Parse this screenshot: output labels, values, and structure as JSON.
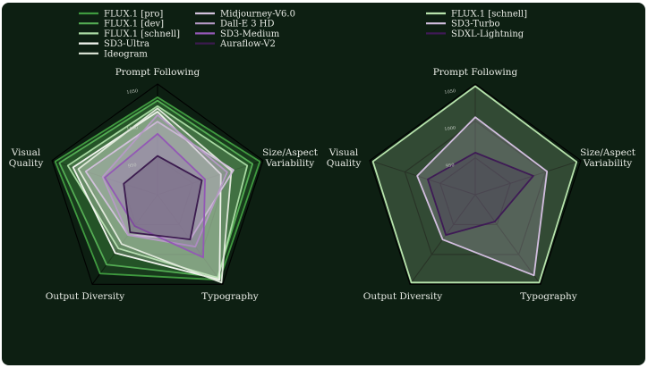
{
  "colors": {
    "background": "#0d1f12",
    "grid": "#000000",
    "label": "#e9ece6"
  },
  "chart_data": [
    {
      "type": "radar",
      "axes": [
        "Prompt Following",
        "Size/Aspect Variability",
        "Typography",
        "Output Diversity",
        "Visual Quality"
      ],
      "axis_label_lines": [
        [
          "Prompt Following"
        ],
        [
          "Size/Aspect",
          "Variability"
        ],
        [
          "Typography"
        ],
        [
          "Output Diversity"
        ],
        [
          "Visual",
          "Quality"
        ]
      ],
      "rticks": [
        "1050",
        "1000",
        "950"
      ],
      "grid_levels": [
        0.333,
        0.667,
        1.0
      ],
      "legend_columns": 2,
      "series": [
        {
          "name": "FLUX.1 [pro]",
          "color": "#3f9a3f",
          "values": [
            0.88,
            0.97,
            0.95,
            0.88,
            0.97
          ]
        },
        {
          "name": "FLUX.1 [dev]",
          "color": "#54ad54",
          "values": [
            0.85,
            0.9,
            0.92,
            0.78,
            0.93
          ]
        },
        {
          "name": "FLUX.1 [schnell]",
          "color": "#a8d9a2",
          "values": [
            0.8,
            0.85,
            0.93,
            0.6,
            0.85
          ]
        },
        {
          "name": "SD3-Ultra",
          "color": "#f2f5ef",
          "values": [
            0.75,
            0.6,
            0.95,
            0.65,
            0.8
          ]
        },
        {
          "name": "Ideogram",
          "color": "#dfe8da",
          "values": [
            0.78,
            0.7,
            0.98,
            0.55,
            0.75
          ]
        },
        {
          "name": "Midjourney-V6.0",
          "color": "#d2c1dc",
          "values": [
            0.66,
            0.72,
            0.5,
            0.45,
            0.68
          ]
        },
        {
          "name": "Dall-E 3 HD",
          "color": "#b69ac6",
          "values": [
            0.72,
            0.66,
            0.58,
            0.45,
            0.52
          ]
        },
        {
          "name": "SD3-Medium",
          "color": "#9358b5",
          "values": [
            0.55,
            0.45,
            0.7,
            0.35,
            0.5
          ]
        },
        {
          "name": "Auraflow-V2",
          "color": "#3b1b4e",
          "values": [
            0.35,
            0.42,
            0.5,
            0.42,
            0.32
          ]
        }
      ]
    },
    {
      "type": "radar",
      "axes": [
        "Prompt Following",
        "Size/Aspect Variability",
        "Typography",
        "Output Diversity",
        "Visual Quality"
      ],
      "axis_label_lines": [
        [
          "Prompt Following"
        ],
        [
          "Size/Aspect",
          "Variability"
        ],
        [
          "Typography"
        ],
        [
          "Output Diversity"
        ],
        [
          "Visual",
          "Quality"
        ]
      ],
      "rticks": [
        "1050",
        "1000",
        "950"
      ],
      "grid_levels": [
        0.333,
        0.667,
        1.0
      ],
      "legend_columns": 1,
      "series": [
        {
          "name": "FLUX.1 [schnell]",
          "color": "#b7e3ac",
          "values": [
            0.98,
            0.96,
            0.98,
            0.98,
            0.97
          ]
        },
        {
          "name": "SD3-Turbo",
          "color": "#d3bfe0",
          "values": [
            0.7,
            0.68,
            0.9,
            0.5,
            0.55
          ]
        },
        {
          "name": "SDXL-Lightning",
          "color": "#3e1a55",
          "values": [
            0.38,
            0.55,
            0.3,
            0.45,
            0.45
          ]
        }
      ]
    }
  ]
}
